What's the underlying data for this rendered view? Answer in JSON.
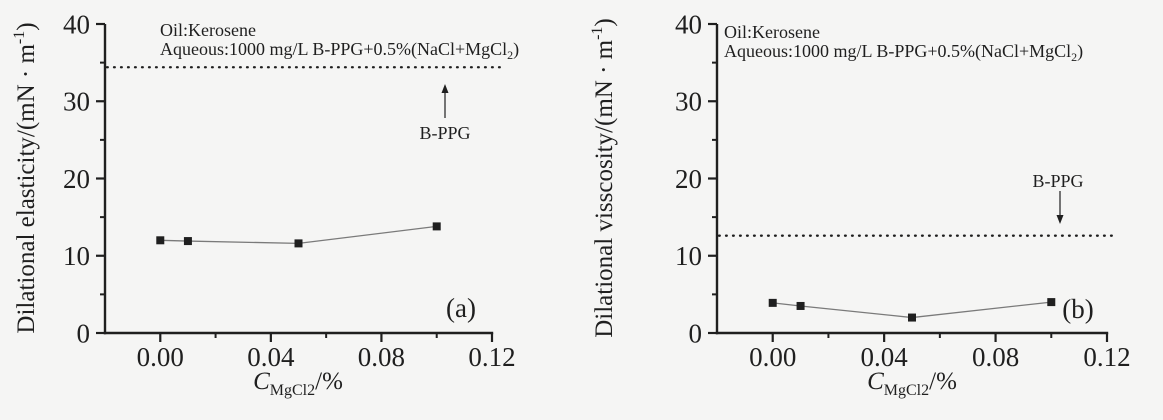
{
  "colors": {
    "ink": "#1f1f1f",
    "series_line": "#7a7a7a",
    "background": "#f5f5f4"
  },
  "chart_data": [
    {
      "type": "line",
      "panel_label": "(a)",
      "annotation": {
        "line1": "Oil:Kerosene",
        "line2_prefix": "Aqueous:1000 mg/L B-PPG+0.5%(NaCl+MgCl",
        "line2_sub": "2",
        "line2_suffix": ")"
      },
      "ylabel": {
        "prefix": "Dilational elasticity/(mN · m",
        "sup": "-1",
        "suffix": ")"
      },
      "xlabel": {
        "symbol": "C",
        "sub": "MgCl2",
        "suffix": "/%"
      },
      "x": [
        0,
        0.01,
        0.05,
        0.1
      ],
      "series": [
        {
          "name": "1000 mg/L B-PPG+0.5%(NaCl+MgCl2)",
          "marker": "filled-square",
          "values": [
            12.0,
            11.9,
            11.6,
            13.8
          ]
        }
      ],
      "reference_line": {
        "value": 34.4,
        "label": "B-PPG",
        "style": "dotted",
        "arrow_direction": "up"
      },
      "xlim": [
        -0.02,
        0.12
      ],
      "ylim": [
        0,
        40
      ],
      "x_ticks": {
        "major": [
          0,
          0.04,
          0.08,
          0.12
        ],
        "labels": [
          "0.00",
          "0.04",
          "0.08",
          "0.12"
        ],
        "minor": [
          0.02,
          0.06,
          0.1
        ]
      },
      "y_ticks": {
        "major": [
          0,
          10,
          20,
          30,
          40
        ],
        "labels": [
          "0",
          "10",
          "20",
          "30",
          "40"
        ],
        "minor": [
          5,
          15,
          25,
          35
        ]
      },
      "grid": false,
      "legend": "none"
    },
    {
      "type": "line",
      "panel_label": "(b)",
      "annotation": {
        "line1": "Oil:Kerosene",
        "line2_prefix": "Aqueous:1000 mg/L B-PPG+0.5%(NaCl+MgCl",
        "line2_sub": "2",
        "line2_suffix": ")"
      },
      "ylabel": {
        "prefix": "Dilational visscosity/(mN · m",
        "sup": "-1",
        "suffix": ")"
      },
      "xlabel": {
        "symbol": "C",
        "sub": "MgCl2",
        "suffix": "/%"
      },
      "x": [
        0,
        0.01,
        0.05,
        0.1
      ],
      "series": [
        {
          "name": "1000 mg/L B-PPG+0.5%(NaCl+MgCl2)",
          "marker": "filled-square",
          "values": [
            3.9,
            3.5,
            2.0,
            4.0
          ]
        }
      ],
      "reference_line": {
        "value": 12.6,
        "label": "B-PPG",
        "style": "dotted",
        "arrow_direction": "down"
      },
      "xlim": [
        -0.02,
        0.12
      ],
      "ylim": [
        0,
        40
      ],
      "x_ticks": {
        "major": [
          0,
          0.04,
          0.08,
          0.12
        ],
        "labels": [
          "0.00",
          "0.04",
          "0.08",
          "0.12"
        ],
        "minor": [
          0.02,
          0.06,
          0.1
        ]
      },
      "y_ticks": {
        "major": [
          0,
          10,
          20,
          30,
          40
        ],
        "labels": [
          "0",
          "10",
          "20",
          "30",
          "40"
        ],
        "minor": [
          5,
          15,
          25,
          35
        ]
      },
      "grid": false,
      "legend": "none"
    }
  ]
}
